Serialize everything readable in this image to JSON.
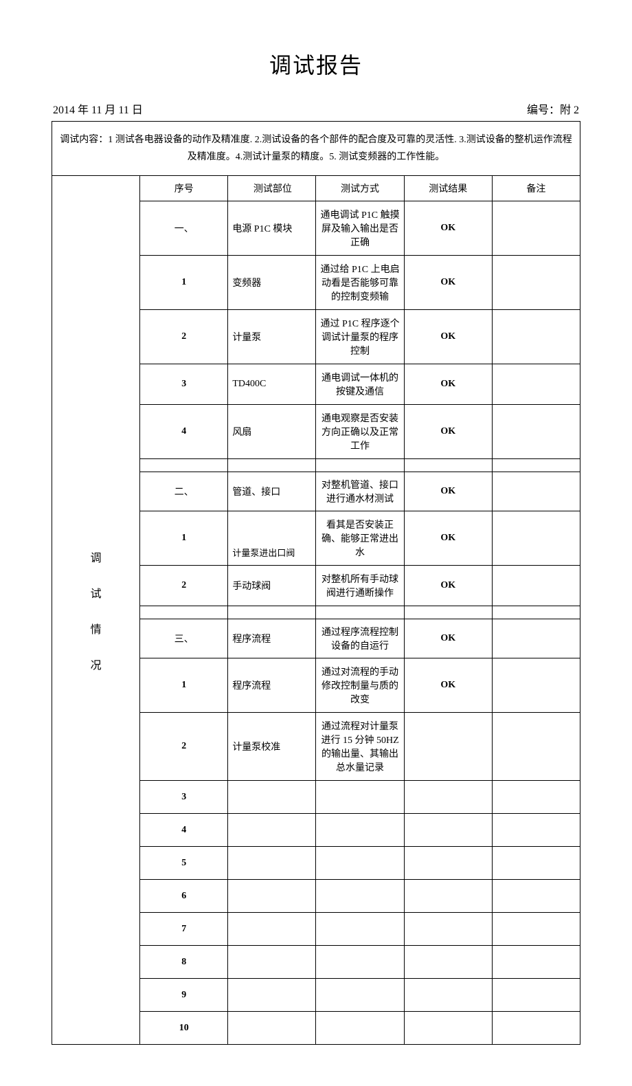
{
  "title": "调试报告",
  "date": "2014 年 11 月 11 日",
  "doc_number_label": "编号：附 2",
  "content_header": "调试内容：1 测试各电器设备的动作及精准度. 2.测试设备的各个部件的配合度及可靠的灵活性. 3.测试设备的整机运作流程及精准度。4.测试计量泵的精度。5. 测试变频器的工作性能。",
  "side_label": "调\n试\n情\n况",
  "columns": {
    "seq": "序号",
    "part": "测试部位",
    "method": "测试方式",
    "result": "测试结果",
    "remark": "备注"
  },
  "fonts": {
    "title_size": 32,
    "body_size": 14,
    "header_size": 16
  },
  "colors": {
    "text": "#000000",
    "border": "#000000",
    "background": "#ffffff"
  },
  "rows": [
    {
      "seq": "一、",
      "part": "电源 P1C 模块",
      "method": "通电调试 P1C 触摸屏及输入输出是否正确",
      "result": "OK",
      "remark": ""
    },
    {
      "seq": "1",
      "part": "变频器",
      "method": "通过给 P1C 上电启动看是否能够可靠的控制变频输",
      "result": "OK",
      "remark": ""
    },
    {
      "seq": "2",
      "part": "计量泵",
      "method": "通过 P1C 程序逐个调试计量泵的程序控制",
      "result": "OK",
      "remark": ""
    },
    {
      "seq": "3",
      "part": "TD400C",
      "method": "通电调试一体机的按键及通信",
      "result": "OK",
      "remark": ""
    },
    {
      "seq": "4",
      "part": "风扇",
      "method": "通电观察是否安装方向正确以及正常工作",
      "result": "OK",
      "remark": ""
    },
    {
      "seq": "",
      "part": "",
      "method": "",
      "result": "",
      "remark": ""
    },
    {
      "seq": "二、",
      "part": "管道、接口",
      "method": "对整机管道、接口进行通水材测试",
      "result": "OK",
      "remark": ""
    },
    {
      "seq": "1",
      "part": "计量泵进出口阀",
      "method": "看其是否安装正确、能够正常进出水",
      "result": "OK",
      "remark": ""
    },
    {
      "seq": "2",
      "part": "手动球阀",
      "method": "对整机所有手动球阀进行通断操作",
      "result": "OK",
      "remark": ""
    },
    {
      "seq": "",
      "part": "",
      "method": "",
      "result": "",
      "remark": ""
    },
    {
      "seq": "三、",
      "part": "程序流程",
      "method": "通过程序流程控制设备的自运行",
      "result": "OK",
      "remark": ""
    },
    {
      "seq": "1",
      "part": "程序流程",
      "method": "通过对流程的手动修改控制量与质的改变",
      "result": "OK",
      "remark": ""
    },
    {
      "seq": "2",
      "part": "计量泵校准",
      "method": "通过流程对计量泵进行 15 分钟 50HZ 的输出量、其输出总水量记录",
      "result": "",
      "remark": ""
    },
    {
      "seq": "3",
      "part": "",
      "method": "",
      "result": "",
      "remark": ""
    },
    {
      "seq": "4",
      "part": "",
      "method": "",
      "result": "",
      "remark": ""
    },
    {
      "seq": "5",
      "part": "",
      "method": "",
      "result": "",
      "remark": ""
    },
    {
      "seq": "6",
      "part": "",
      "method": "",
      "result": "",
      "remark": ""
    },
    {
      "seq": "7",
      "part": "",
      "method": "",
      "result": "",
      "remark": ""
    },
    {
      "seq": "8",
      "part": "",
      "method": "",
      "result": "",
      "remark": ""
    },
    {
      "seq": "9",
      "part": "",
      "method": "",
      "result": "",
      "remark": ""
    },
    {
      "seq": "10",
      "part": "",
      "method": "",
      "result": "",
      "remark": ""
    }
  ]
}
